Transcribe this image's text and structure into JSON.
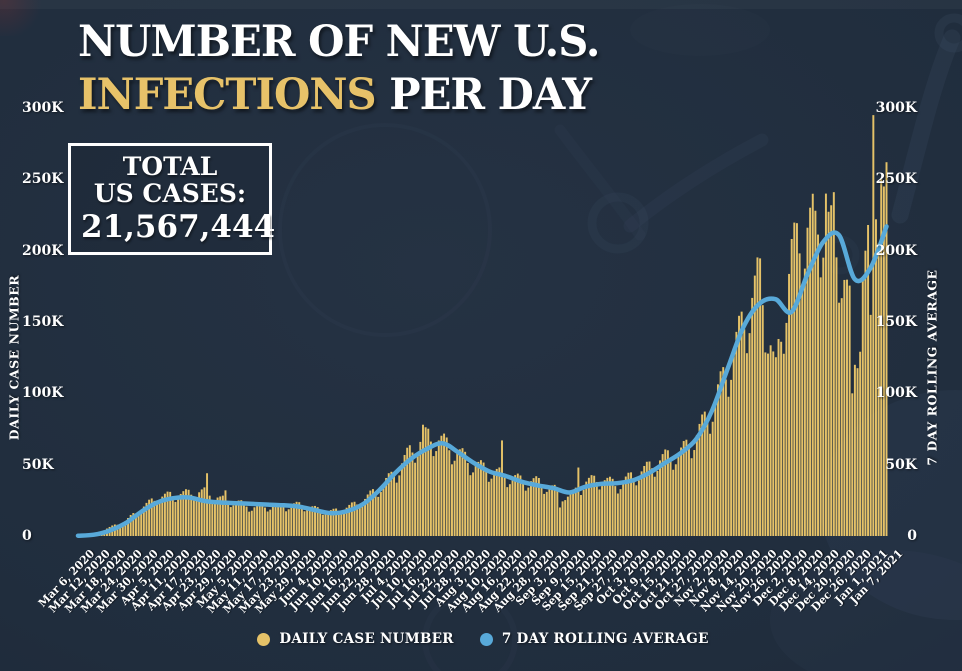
{
  "colors": {
    "background": "#223040",
    "gold": "#e7c269",
    "bar": "#e5c268",
    "line": "#58a9d9",
    "text": "#ffffff"
  },
  "title": {
    "line1": "NUMBER OF NEW U.S.",
    "line2_highlight": "INFECTIONS",
    "line2_rest": " PER DAY"
  },
  "total_box": {
    "line1": "TOTAL",
    "line2": "US CASES:",
    "value": "21,567,444"
  },
  "left_axis": {
    "title": "DAILY CASE NUMBER"
  },
  "right_axis": {
    "title": "7 DAY ROLLING AVERAGE"
  },
  "legend": {
    "items": [
      {
        "label": "DAILY CASE NUMBER",
        "color": "#e5c268"
      },
      {
        "label": "7 DAY ROLLING AVERAGE",
        "color": "#58a9d9"
      }
    ]
  },
  "chart_data": {
    "type": "bar+line",
    "ylim": [
      0,
      300000
    ],
    "y_tick_step": 50000,
    "y_tick_labels": [
      "0",
      "50K",
      "100K",
      "150K",
      "200K",
      "250K",
      "300K"
    ],
    "tick_interval_days": 6,
    "days_total": 308,
    "x_tick_labels": [
      "Mar 6, 2020",
      "Mar 12, 2020",
      "Mar 18, 2020",
      "Mar 24, 2020",
      "Mar 30, 2020",
      "Apr 5, 2020",
      "Apr 11, 2020",
      "Apr 17, 2020",
      "Apr 23, 2020",
      "Apr 29, 2020",
      "May 5, 2020",
      "May 11, 2020",
      "May 17, 2020",
      "May 23, 2020",
      "May 29, 2020",
      "Jun 4, 2020",
      "Jun 10, 2020",
      "Jun 16, 2020",
      "Jun 22, 2020",
      "Jun 28, 2020",
      "Jul 4, 2020",
      "Jul 10, 2020",
      "Jul 16, 2020",
      "Jul 22, 2020",
      "Jul 28, 2020",
      "Aug 3, 2020",
      "Aug 10, 2020",
      "Aug 16, 2020",
      "Aug 22, 2020",
      "Aug 28, 2020",
      "Sep 3, 2020",
      "Sep 9, 2020",
      "Sep 15, 2020",
      "Sep 21, 2020",
      "Sep 27, 2020",
      "Oct 3, 2020",
      "Oct 9, 2020",
      "Oct 15, 2020",
      "Oct 21, 2020",
      "Oct 27, 2020",
      "Nov 2, 2020",
      "Nov 8, 2020",
      "Nov 14, 2020",
      "Nov 20, 2020",
      "Nov 26, 2020",
      "Dec 2, 2020",
      "Dec 8, 2020",
      "Dec 14, 2020",
      "Dec 20, 2020",
      "Dec 26, 2020",
      "Jan 1, 2021",
      "Jan 7, 2021"
    ],
    "series": [
      {
        "name": "DAILY CASE NUMBER",
        "type": "bar",
        "color": "#e5c268",
        "values_at_ticks": [
          300,
          1500,
          6000,
          10500,
          19500,
          27000,
          29000,
          30000,
          31000,
          26000,
          24000,
          20000,
          21000,
          21000,
          22000,
          19000,
          17000,
          20000,
          25000,
          34000,
          44000,
          60000,
          70000,
          66000,
          58000,
          50000,
          46000,
          42000,
          39000,
          38000,
          33000,
          27000,
          38000,
          40000,
          36000,
          42000,
          48000,
          55000,
          58000,
          70000,
          90000,
          118000,
          150000,
          182000,
          112000,
          196000,
          216000,
          222000,
          200000,
          140000,
          160000,
          262000
        ]
      },
      {
        "name": "7 DAY ROLLING AVERAGE",
        "type": "line",
        "color": "#58a9d9",
        "values_at_ticks": [
          200,
          900,
          3800,
          9000,
          17000,
          23500,
          26500,
          27000,
          24500,
          23500,
          23000,
          22500,
          22000,
          21500,
          20500,
          18000,
          16000,
          17500,
          22500,
          32000,
          44000,
          54000,
          61000,
          65000,
          58500,
          51000,
          45000,
          42000,
          38000,
          35500,
          33500,
          30500,
          34500,
          36500,
          37000,
          39000,
          44000,
          51000,
          58000,
          68000,
          88000,
          118000,
          147000,
          163000,
          166000,
          157000,
          183000,
          206000,
          211000,
          180000,
          188000,
          217000
        ]
      }
    ],
    "daily_detail": {
      "start_weekday": 5,
      "weekday_multipliers": [
        0.82,
        0.88,
        1.0,
        1.06,
        1.1,
        1.08,
        0.96
      ],
      "bar_overrides_by_day": {
        "49": 44000,
        "56": 32000,
        "131": 78000,
        "161": 67000,
        "183": 20000,
        "190": 48000,
        "280": 228000,
        "284": 240000,
        "287": 241000,
        "294": 100000,
        "295": 120000,
        "298": 180000,
        "299": 200000,
        "300": 218000,
        "301": 155000,
        "302": 295000,
        "303": 222000,
        "304": 205000,
        "305": 250000,
        "306": 245000,
        "307": 262000
      }
    }
  }
}
